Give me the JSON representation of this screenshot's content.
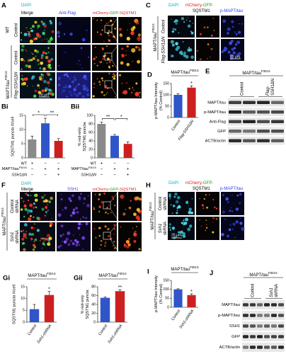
{
  "figure": {
    "A": {
      "label": "A",
      "headers": {
        "dapi": "DAPI",
        "merge": "Merge",
        "flag": "Anti-Flag",
        "mcherry": "mCherry-",
        "gfp": "GFP-",
        "sqstm1": "SQSTM1"
      },
      "row_labels": [
        "Control",
        "Control",
        "Flag-SSH1ΔN"
      ],
      "groups": [
        "WT",
        {
          "text": "MAPT/tau",
          "sup": "P301S"
        }
      ],
      "scale_bar": "20 µm"
    },
    "C": {
      "label": "C",
      "headers": {
        "dapi": "DAPI",
        "mcherry": "mCherry-",
        "gfp": "GFP-",
        "sqstm1": "SQSTM1",
        "ptau": "p-MAPT/tau"
      },
      "row_labels": [
        "Control",
        "Flag-SSH1ΔN"
      ],
      "group": {
        "text": "MAPT/tau",
        "sup": "P301S"
      },
      "scale_bar": "20 µm"
    },
    "E": {
      "label": "E",
      "title": {
        "text": "MAPT/tau",
        "sup": "P301S"
      },
      "lanes": [
        [
          "Control"
        ],
        [
          "Flag-",
          "SSH1ΔN"
        ]
      ],
      "bands": [
        "MAPT/tau",
        "p-MAPT/tau",
        "Anti-Flag",
        "GFP",
        "ACTB/actin"
      ]
    },
    "F": {
      "label": "F",
      "headers": {
        "dapi": "DAPI",
        "merge": "Merge",
        "ssh1": "SSH1",
        "mcherry": "mCherry-",
        "gfp": "GFP-",
        "sqstm1": "SQSTM1"
      },
      "row_labels": [
        [
          "Control",
          "shRNA"
        ],
        [
          "Ssh1",
          "shRNA"
        ]
      ],
      "group": {
        "text": "MAPT/tau",
        "sup": "P301S"
      }
    },
    "H": {
      "label": "H",
      "headers": {
        "dapi": "DAPI",
        "mcherry": "mCherry-",
        "gfp": "GFP-",
        "sqstm1": "SQSTM1",
        "ptau": "p-MAPT/tau"
      },
      "row_labels": [
        [
          "Control",
          "shRNA"
        ],
        [
          "Ssh1",
          "shRNA"
        ]
      ],
      "group": {
        "text": "MAPT/tau",
        "sup": "P301S"
      },
      "scale_bar": "20 µm"
    },
    "J": {
      "label": "J",
      "title": {
        "text": "MAPT/tau",
        "sup": "P301S"
      },
      "lanes": [
        [
          "Control"
        ],
        [
          "Ssh1",
          "shRNA"
        ]
      ],
      "bands": [
        "MAPT/tau",
        "p-MAPT/tau",
        "SSH1",
        "GFP",
        "ACTB/actin"
      ]
    }
  },
  "chart_data": [
    {
      "type": "bar",
      "label": "Bi",
      "ylabel": [
        "SQSTM1 puncta #/cell"
      ],
      "ylim": [
        0,
        15
      ],
      "yticks": [
        0,
        5,
        10,
        15
      ],
      "values": [
        6.5,
        12.2,
        6
      ],
      "errors": [
        1.2,
        1.8,
        0.8
      ],
      "colors": [
        "#8a8a8a",
        "#2f55c8",
        "#cc2020"
      ],
      "conditions": [
        {
          "name": "WT",
          "signs": [
            "+",
            "−",
            "−"
          ]
        },
        {
          "name": {
            "text": "MAPT/tau",
            "sup": "P301S"
          },
          "signs": [
            "−",
            "+",
            "+"
          ]
        },
        {
          "name": "SSH1ΔN",
          "signs": [
            "−",
            "−",
            "+"
          ]
        }
      ],
      "significance": [
        "*",
        "**"
      ]
    },
    {
      "type": "bar",
      "label": "Bii",
      "ylabel": [
        "% red-only",
        "SQSTM1 puncta"
      ],
      "ylim": [
        0,
        100
      ],
      "yticks": [
        0,
        20,
        40,
        60,
        80,
        100
      ],
      "values": [
        80,
        52,
        33
      ],
      "errors": [
        4,
        3,
        5
      ],
      "colors": [
        "#8a8a8a",
        "#2f55c8",
        "#cc2020"
      ],
      "conditions": [
        {
          "name": "WT",
          "signs": [
            "+",
            "−",
            "−"
          ]
        },
        {
          "name": {
            "text": "MAPT/tau",
            "sup": "P301S"
          },
          "signs": [
            "−",
            "+",
            "+"
          ]
        },
        {
          "name": "SSH1ΔN",
          "signs": [
            "−",
            "−",
            "+"
          ]
        }
      ],
      "significance": [
        "**",
        "*"
      ]
    },
    {
      "type": "bar",
      "label": "D",
      "title": {
        "text": "MAPT/tau",
        "sup": "P301S"
      },
      "ylabel": [
        "p-MAPT/tau Intensity",
        "(% Control)"
      ],
      "ylim": [
        0,
        150
      ],
      "yticks": [
        0,
        50,
        100,
        150
      ],
      "categories": [
        "Control",
        "Flag-SSH1ΔN"
      ],
      "values": [
        100,
        132
      ],
      "errors": [
        5,
        8
      ],
      "colors": [
        "#2f55c8",
        "#cc2020"
      ],
      "significance": [
        "*"
      ]
    },
    {
      "type": "bar",
      "label": "Gi",
      "title": {
        "text": "MAPT/tau",
        "sup": "P301S"
      },
      "ylabel": [
        "SQSTM1 puncta #/cell"
      ],
      "ylim": [
        0,
        15
      ],
      "yticks": [
        0,
        5,
        10,
        15
      ],
      "categories": [
        "Control",
        "Ssh1-shRNA"
      ],
      "values": [
        5.5,
        11.5
      ],
      "errors": [
        2,
        1.5
      ],
      "colors": [
        "#2f55c8",
        "#cc2020"
      ],
      "significance": [
        "*"
      ]
    },
    {
      "type": "bar",
      "label": "Gii",
      "title": {
        "text": "MAPT/tau",
        "sup": "P301S"
      },
      "ylabel": [
        "% red-only",
        "SQSTM1 puncta"
      ],
      "ylim": [
        0,
        80
      ],
      "yticks": [
        0,
        20,
        40,
        60,
        80
      ],
      "categories": [
        "Control",
        "Ssh1-shRNA"
      ],
      "values": [
        55,
        70
      ],
      "errors": [
        2,
        3
      ],
      "colors": [
        "#2f55c8",
        "#cc2020"
      ],
      "significance": [
        "**"
      ]
    },
    {
      "type": "bar",
      "label": "I",
      "title": {
        "text": "MAPT/tau",
        "sup": "P301S"
      },
      "ylabel": [
        "p-MAPT/tau Intensity",
        "(% Control)"
      ],
      "ylim": [
        0,
        150
      ],
      "yticks": [
        0,
        50,
        100,
        150
      ],
      "categories": [
        "Control",
        "Ssh1-shRNA"
      ],
      "values": [
        100,
        68
      ],
      "errors": [
        3,
        7
      ],
      "colors": [
        "#2f55c8",
        "#cc2020"
      ],
      "significance": [
        "*"
      ]
    }
  ]
}
